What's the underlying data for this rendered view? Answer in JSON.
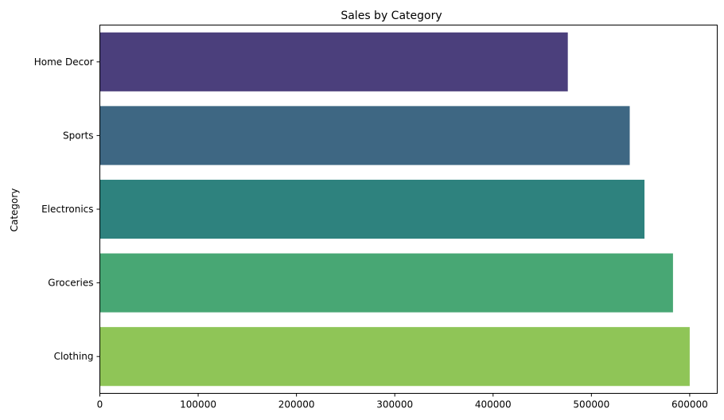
{
  "chart_data": {
    "type": "bar",
    "orientation": "horizontal",
    "title": "Sales by Category",
    "xlabel": "",
    "ylabel": "Category",
    "categories": [
      "Home Decor",
      "Sports",
      "Electronics",
      "Groceries",
      "Clothing"
    ],
    "values": [
      476000,
      539000,
      554000,
      583000,
      600000
    ],
    "colors": [
      "#4b3f7c",
      "#3e6783",
      "#2e827e",
      "#48a774",
      "#8fc557"
    ],
    "xlim": [
      0,
      628000
    ],
    "xticks": [
      0,
      100000,
      200000,
      300000,
      400000,
      500000,
      600000
    ],
    "xtick_labels": [
      "0",
      "100000",
      "200000",
      "300000",
      "400000",
      "500000",
      "600000"
    ],
    "grid": false,
    "legend": "none"
  }
}
